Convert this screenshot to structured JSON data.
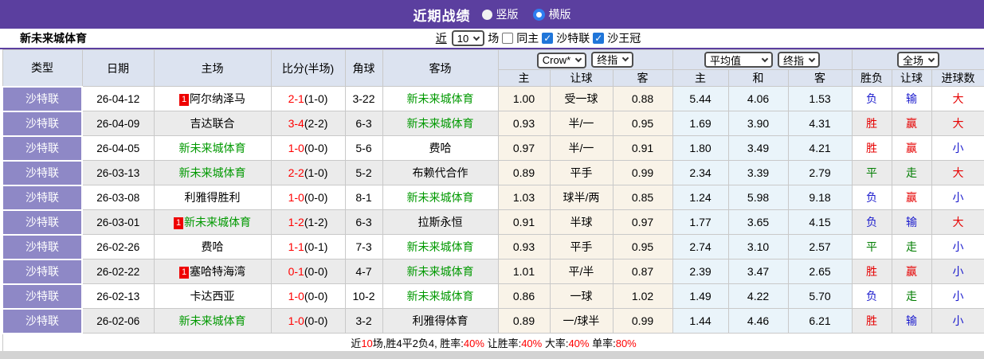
{
  "palette": {
    "topbar_purple": "#5b3f9f",
    "league_cell_purple": "#8e88c6",
    "header_bg": "#dce3f0",
    "row_alt_gray": "#ebebeb",
    "odds_col_bg": "#f9f3e8",
    "avg_col_bg": "#eaf4fa",
    "result_red": "#e60000",
    "result_blue": "#1a1acd",
    "result_green": "#007d00",
    "team_green": "#009900",
    "accent_blue": "#2e7df0",
    "badge_red": "#ee0000"
  },
  "topbar": {
    "title": "近期战绩",
    "radios": [
      {
        "label": "竖版",
        "checked": false
      },
      {
        "label": "横版",
        "checked": true
      }
    ]
  },
  "toolbar": {
    "team": "新未来城体育",
    "near_label": "近",
    "count_value": "10",
    "games_label": "场",
    "checkboxes": [
      {
        "label": "同主",
        "checked": false
      },
      {
        "label": "沙特联",
        "checked": true
      },
      {
        "label": "沙王冠",
        "checked": true
      }
    ]
  },
  "table": {
    "main_headers": [
      "类型",
      "日期",
      "主场",
      "比分(半场)",
      "角球",
      "客场"
    ],
    "selects": {
      "crow": "Crow*",
      "final1": "终指",
      "avg": "平均值",
      "final2": "终指",
      "full": "全场"
    },
    "sub_headers": [
      "主",
      "让球",
      "客",
      "主",
      "和",
      "客",
      "胜负",
      "让球",
      "进球数"
    ],
    "result_color_map": {
      "胜": "red",
      "赢": "red",
      "大": "red",
      "负": "blue",
      "输": "blue",
      "小": "blue",
      "平": "green",
      "走": "green"
    },
    "rows": [
      {
        "league": "沙特联",
        "date": "26-04-12",
        "home": "阿尔纳泽马",
        "home_badge": "1",
        "home_green": false,
        "score": "2-1",
        "half": "(1-0)",
        "corner": "3-22",
        "away": "新未来城体育",
        "away_green": true,
        "odds": [
          "1.00",
          "受一球",
          "0.88"
        ],
        "avg": [
          "5.44",
          "4.06",
          "1.53"
        ],
        "results": [
          "负",
          "输",
          "大"
        ]
      },
      {
        "league": "沙特联",
        "date": "26-04-09",
        "home": "吉达联合",
        "home_badge": null,
        "home_green": false,
        "score": "3-4",
        "half": "(2-2)",
        "corner": "6-3",
        "away": "新未来城体育",
        "away_green": true,
        "odds": [
          "0.93",
          "半/一",
          "0.95"
        ],
        "avg": [
          "1.69",
          "3.90",
          "4.31"
        ],
        "results": [
          "胜",
          "赢",
          "大"
        ]
      },
      {
        "league": "沙特联",
        "date": "26-04-05",
        "home": "新未来城体育",
        "home_badge": null,
        "home_green": true,
        "score": "1-0",
        "half": "(0-0)",
        "corner": "5-6",
        "away": "费哈",
        "away_green": false,
        "odds": [
          "0.97",
          "半/一",
          "0.91"
        ],
        "avg": [
          "1.80",
          "3.49",
          "4.21"
        ],
        "results": [
          "胜",
          "赢",
          "小"
        ]
      },
      {
        "league": "沙特联",
        "date": "26-03-13",
        "home": "新未来城体育",
        "home_badge": null,
        "home_green": true,
        "score": "2-2",
        "half": "(1-0)",
        "corner": "5-2",
        "away": "布赖代合作",
        "away_green": false,
        "odds": [
          "0.89",
          "平手",
          "0.99"
        ],
        "avg": [
          "2.34",
          "3.39",
          "2.79"
        ],
        "results": [
          "平",
          "走",
          "大"
        ]
      },
      {
        "league": "沙特联",
        "date": "26-03-08",
        "home": "利雅得胜利",
        "home_badge": null,
        "home_green": false,
        "score": "1-0",
        "half": "(0-0)",
        "corner": "8-1",
        "away": "新未来城体育",
        "away_green": true,
        "odds": [
          "1.03",
          "球半/两",
          "0.85"
        ],
        "avg": [
          "1.24",
          "5.98",
          "9.18"
        ],
        "results": [
          "负",
          "赢",
          "小"
        ]
      },
      {
        "league": "沙特联",
        "date": "26-03-01",
        "home": "新未来城体育",
        "home_badge": "1",
        "home_green": true,
        "score": "1-2",
        "half": "(1-2)",
        "corner": "6-3",
        "away": "拉斯永恒",
        "away_green": false,
        "odds": [
          "0.91",
          "半球",
          "0.97"
        ],
        "avg": [
          "1.77",
          "3.65",
          "4.15"
        ],
        "results": [
          "负",
          "输",
          "大"
        ]
      },
      {
        "league": "沙特联",
        "date": "26-02-26",
        "home": "费哈",
        "home_badge": null,
        "home_green": false,
        "score": "1-1",
        "half": "(0-1)",
        "corner": "7-3",
        "away": "新未来城体育",
        "away_green": true,
        "odds": [
          "0.93",
          "平手",
          "0.95"
        ],
        "avg": [
          "2.74",
          "3.10",
          "2.57"
        ],
        "results": [
          "平",
          "走",
          "小"
        ]
      },
      {
        "league": "沙特联",
        "date": "26-02-22",
        "home": "塞哈特海湾",
        "home_badge": "1",
        "home_green": false,
        "score": "0-1",
        "half": "(0-0)",
        "corner": "4-7",
        "away": "新未来城体育",
        "away_green": true,
        "odds": [
          "1.01",
          "平/半",
          "0.87"
        ],
        "avg": [
          "2.39",
          "3.47",
          "2.65"
        ],
        "results": [
          "胜",
          "赢",
          "小"
        ]
      },
      {
        "league": "沙特联",
        "date": "26-02-13",
        "home": "卡达西亚",
        "home_badge": null,
        "home_green": false,
        "score": "1-0",
        "half": "(0-0)",
        "corner": "10-2",
        "away": "新未来城体育",
        "away_green": true,
        "odds": [
          "0.86",
          "一球",
          "1.02"
        ],
        "avg": [
          "1.49",
          "4.22",
          "5.70"
        ],
        "results": [
          "负",
          "走",
          "小"
        ]
      },
      {
        "league": "沙特联",
        "date": "26-02-06",
        "home": "新未来城体育",
        "home_badge": null,
        "home_green": true,
        "score": "1-0",
        "half": "(0-0)",
        "corner": "3-2",
        "away": "利雅得体育",
        "away_green": false,
        "odds": [
          "0.89",
          "一/球半",
          "0.99"
        ],
        "avg": [
          "1.44",
          "4.46",
          "6.21"
        ],
        "results": [
          "胜",
          "输",
          "小"
        ]
      }
    ]
  },
  "footer": {
    "parts": [
      {
        "text": "近",
        "red": false
      },
      {
        "text": "10",
        "red": true
      },
      {
        "text": "场,胜4平2负4, 胜率:",
        "red": false
      },
      {
        "text": "40%",
        "red": true
      },
      {
        "text": " 让胜率:",
        "red": false
      },
      {
        "text": "40%",
        "red": true
      },
      {
        "text": " 大率:",
        "red": false
      },
      {
        "text": "40%",
        "red": true
      },
      {
        "text": " 单率:",
        "red": false
      },
      {
        "text": "80%",
        "red": true
      }
    ]
  }
}
